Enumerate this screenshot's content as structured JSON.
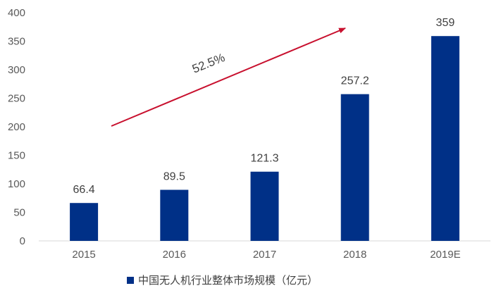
{
  "chart_data": {
    "type": "bar",
    "categories": [
      "2015",
      "2016",
      "2017",
      "2018",
      "2019E"
    ],
    "series": [
      {
        "name": "中国无人机行业整体市场规模（亿元）",
        "values": [
          66.4,
          89.5,
          121.3,
          257.2,
          359
        ]
      }
    ],
    "data_labels": [
      "66.4",
      "89.5",
      "121.3",
      "257.2",
      "359"
    ],
    "y_ticks": [
      "0",
      "50",
      "100",
      "150",
      "200",
      "250",
      "300",
      "350",
      "400"
    ],
    "ylim": [
      0,
      400
    ],
    "grid": false,
    "legend_position": "bottom",
    "annotation": {
      "text": "52.5%",
      "type": "growth-arrow"
    },
    "colors": {
      "bar": "#003087",
      "arrow": "#c8102e",
      "axis": "#d9d9d9",
      "text": "#595959"
    }
  }
}
